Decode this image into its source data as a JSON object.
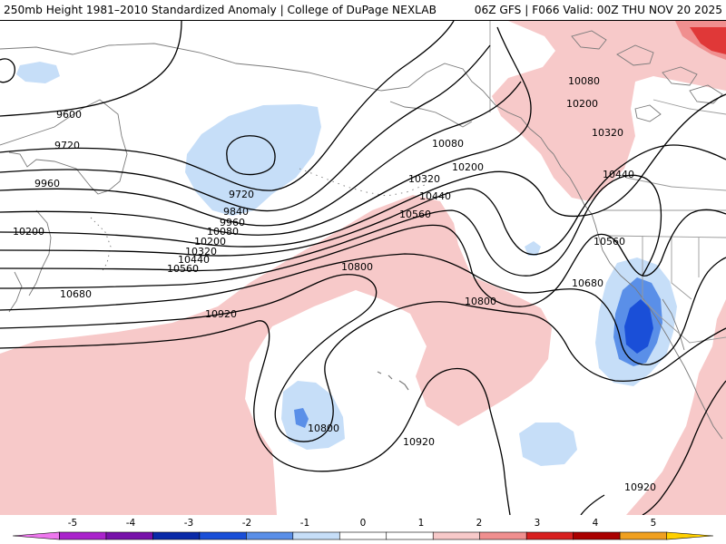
{
  "header": {
    "title": "250mb Height 1981–2010 Standardized Anomaly | College of DuPage NEXLAB",
    "run_info": "06Z GFS | F066 Valid: 00Z THU NOV 20 2025"
  },
  "colors": {
    "contour": "#000000",
    "coast": "#7a7a7a",
    "neg1": "#c6def8",
    "neg2": "#5a8fe8",
    "neg3": "#1a4fd8",
    "pos1": "#f7c9c9",
    "pos2": "#f08f8f",
    "pos3": "#d82020"
  },
  "contours": {
    "labels": [
      "9600",
      "9720",
      "9840",
      "9960",
      "10080",
      "10200",
      "10320",
      "10440",
      "10560",
      "10680",
      "10800",
      "10920"
    ],
    "map_labels": [
      {
        "text": "9600"
      },
      {
        "text": "9720"
      },
      {
        "text": "9960"
      },
      {
        "text": "10200"
      },
      {
        "text": "10680"
      },
      {
        "text": "10920"
      },
      {
        "text": "9720"
      },
      {
        "text": "9840"
      },
      {
        "text": "9960"
      },
      {
        "text": "10080"
      },
      {
        "text": "10200"
      },
      {
        "text": "10320"
      },
      {
        "text": "10440"
      },
      {
        "text": "10560"
      },
      {
        "text": "10800"
      },
      {
        "text": "10080"
      },
      {
        "text": "10200"
      },
      {
        "text": "10320"
      },
      {
        "text": "10440"
      },
      {
        "text": "10560"
      },
      {
        "text": "10800"
      },
      {
        "text": "10080"
      },
      {
        "text": "10200"
      },
      {
        "text": "10320"
      },
      {
        "text": "10440"
      },
      {
        "text": "10560"
      },
      {
        "text": "10680"
      },
      {
        "text": "10800"
      },
      {
        "text": "10920"
      },
      {
        "text": "10920"
      }
    ]
  },
  "colorbar": {
    "ticks": [
      "-5",
      "-4",
      "-3",
      "-2",
      "-1",
      "0",
      "1",
      "2",
      "3",
      "4",
      "5"
    ],
    "colors": [
      "#ee77ee",
      "#aa22cc",
      "#7711aa",
      "#0a2aa8",
      "#1a4fd8",
      "#5a8fe8",
      "#c6def8",
      "#ffffff",
      "#ffffff",
      "#f7c9c9",
      "#f08f8f",
      "#d82020",
      "#aa0000",
      "#f0a020",
      "#ffd000"
    ]
  }
}
